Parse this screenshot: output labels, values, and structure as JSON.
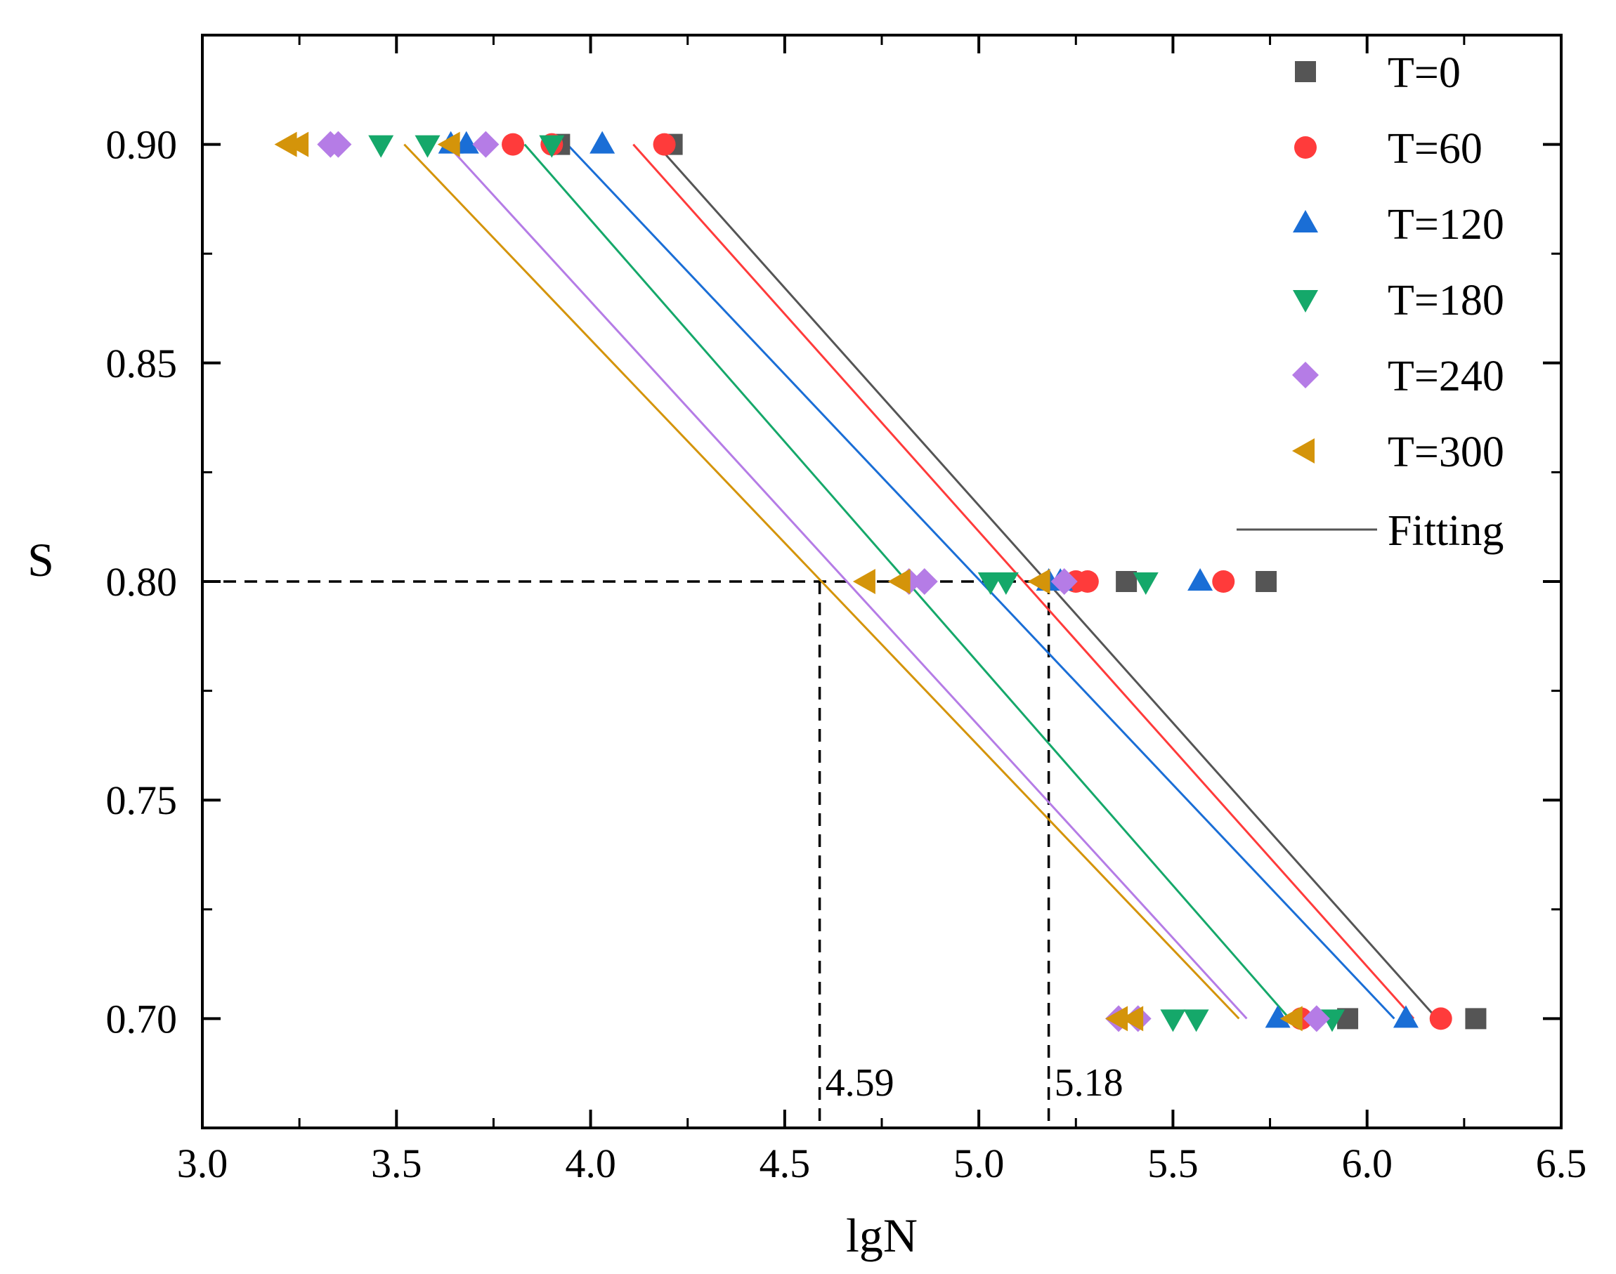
{
  "chart_data": {
    "type": "scatter",
    "xlabel": "lgN",
    "ylabel": "S",
    "xlim": [
      3.0,
      6.5
    ],
    "ylim": [
      0.675,
      0.925
    ],
    "x_ticks": [
      3.0,
      3.5,
      4.0,
      4.5,
      5.0,
      5.5,
      6.0,
      6.5
    ],
    "x_tick_labels": [
      "3.0",
      "3.5",
      "4.0",
      "4.5",
      "5.0",
      "5.5",
      "6.0",
      "6.5"
    ],
    "y_ticks": [
      0.7,
      0.75,
      0.8,
      0.85,
      0.9
    ],
    "y_tick_labels": [
      "0.70",
      "0.75",
      "0.80",
      "0.85",
      "0.90"
    ],
    "grid": false,
    "legend_position": "top-right",
    "series": [
      {
        "name": "T=0",
        "marker": "square",
        "color": "#555555",
        "points": [
          [
            3.92,
            0.9
          ],
          [
            4.21,
            0.9
          ],
          [
            5.38,
            0.8
          ],
          [
            5.74,
            0.8
          ],
          [
            5.95,
            0.7
          ],
          [
            6.28,
            0.7
          ]
        ],
        "fit": [
          [
            4.17,
            0.9
          ],
          [
            6.18,
            0.7
          ]
        ]
      },
      {
        "name": "T=60",
        "marker": "circle",
        "color": "#ff3b3b",
        "points": [
          [
            3.8,
            0.9
          ],
          [
            3.9,
            0.9
          ],
          [
            4.19,
            0.9
          ],
          [
            5.25,
            0.8
          ],
          [
            5.28,
            0.8
          ],
          [
            5.63,
            0.8
          ],
          [
            5.83,
            0.7
          ],
          [
            6.19,
            0.7
          ]
        ],
        "fit": [
          [
            4.11,
            0.9
          ],
          [
            6.12,
            0.7
          ]
        ]
      },
      {
        "name": "T=120",
        "marker": "triangle-up",
        "color": "#1a6ed6",
        "points": [
          [
            3.64,
            0.9
          ],
          [
            3.68,
            0.9
          ],
          [
            4.03,
            0.9
          ],
          [
            5.18,
            0.8
          ],
          [
            5.21,
            0.8
          ],
          [
            5.57,
            0.8
          ],
          [
            5.77,
            0.7
          ],
          [
            6.1,
            0.7
          ]
        ],
        "fit": [
          [
            3.94,
            0.9
          ],
          [
            6.07,
            0.7
          ]
        ]
      },
      {
        "name": "T=180",
        "marker": "triangle-down",
        "color": "#15a86a",
        "points": [
          [
            3.46,
            0.9
          ],
          [
            3.58,
            0.9
          ],
          [
            3.9,
            0.9
          ],
          [
            5.03,
            0.8
          ],
          [
            5.07,
            0.8
          ],
          [
            5.43,
            0.8
          ],
          [
            5.5,
            0.7
          ],
          [
            5.56,
            0.7
          ],
          [
            5.91,
            0.7
          ]
        ],
        "fit": [
          [
            3.83,
            0.9
          ],
          [
            5.8,
            0.7
          ]
        ]
      },
      {
        "name": "T=240",
        "marker": "diamond",
        "color": "#b57ce6",
        "points": [
          [
            3.33,
            0.9
          ],
          [
            3.35,
            0.9
          ],
          [
            3.73,
            0.9
          ],
          [
            4.82,
            0.8
          ],
          [
            4.86,
            0.8
          ],
          [
            5.22,
            0.8
          ],
          [
            5.36,
            0.7
          ],
          [
            5.41,
            0.7
          ],
          [
            5.87,
            0.7
          ]
        ],
        "fit": [
          [
            3.63,
            0.9
          ],
          [
            5.69,
            0.7
          ]
        ]
      },
      {
        "name": "T=300",
        "marker": "triangle-left",
        "color": "#d4940a",
        "points": [
          [
            3.22,
            0.9
          ],
          [
            3.25,
            0.9
          ],
          [
            3.64,
            0.9
          ],
          [
            4.71,
            0.8
          ],
          [
            4.8,
            0.8
          ],
          [
            5.16,
            0.8
          ],
          [
            5.36,
            0.7
          ],
          [
            5.4,
            0.7
          ],
          [
            5.81,
            0.7
          ]
        ],
        "fit": [
          [
            3.52,
            0.9
          ],
          [
            5.67,
            0.7
          ]
        ]
      }
    ],
    "fitting_legend_label": "Fitting",
    "fitting_legend_color": "#555555",
    "reference_lines": {
      "y": 0.8,
      "x_values": [
        4.59,
        5.18
      ],
      "x_labels": [
        "4.59",
        "5.18"
      ]
    }
  }
}
